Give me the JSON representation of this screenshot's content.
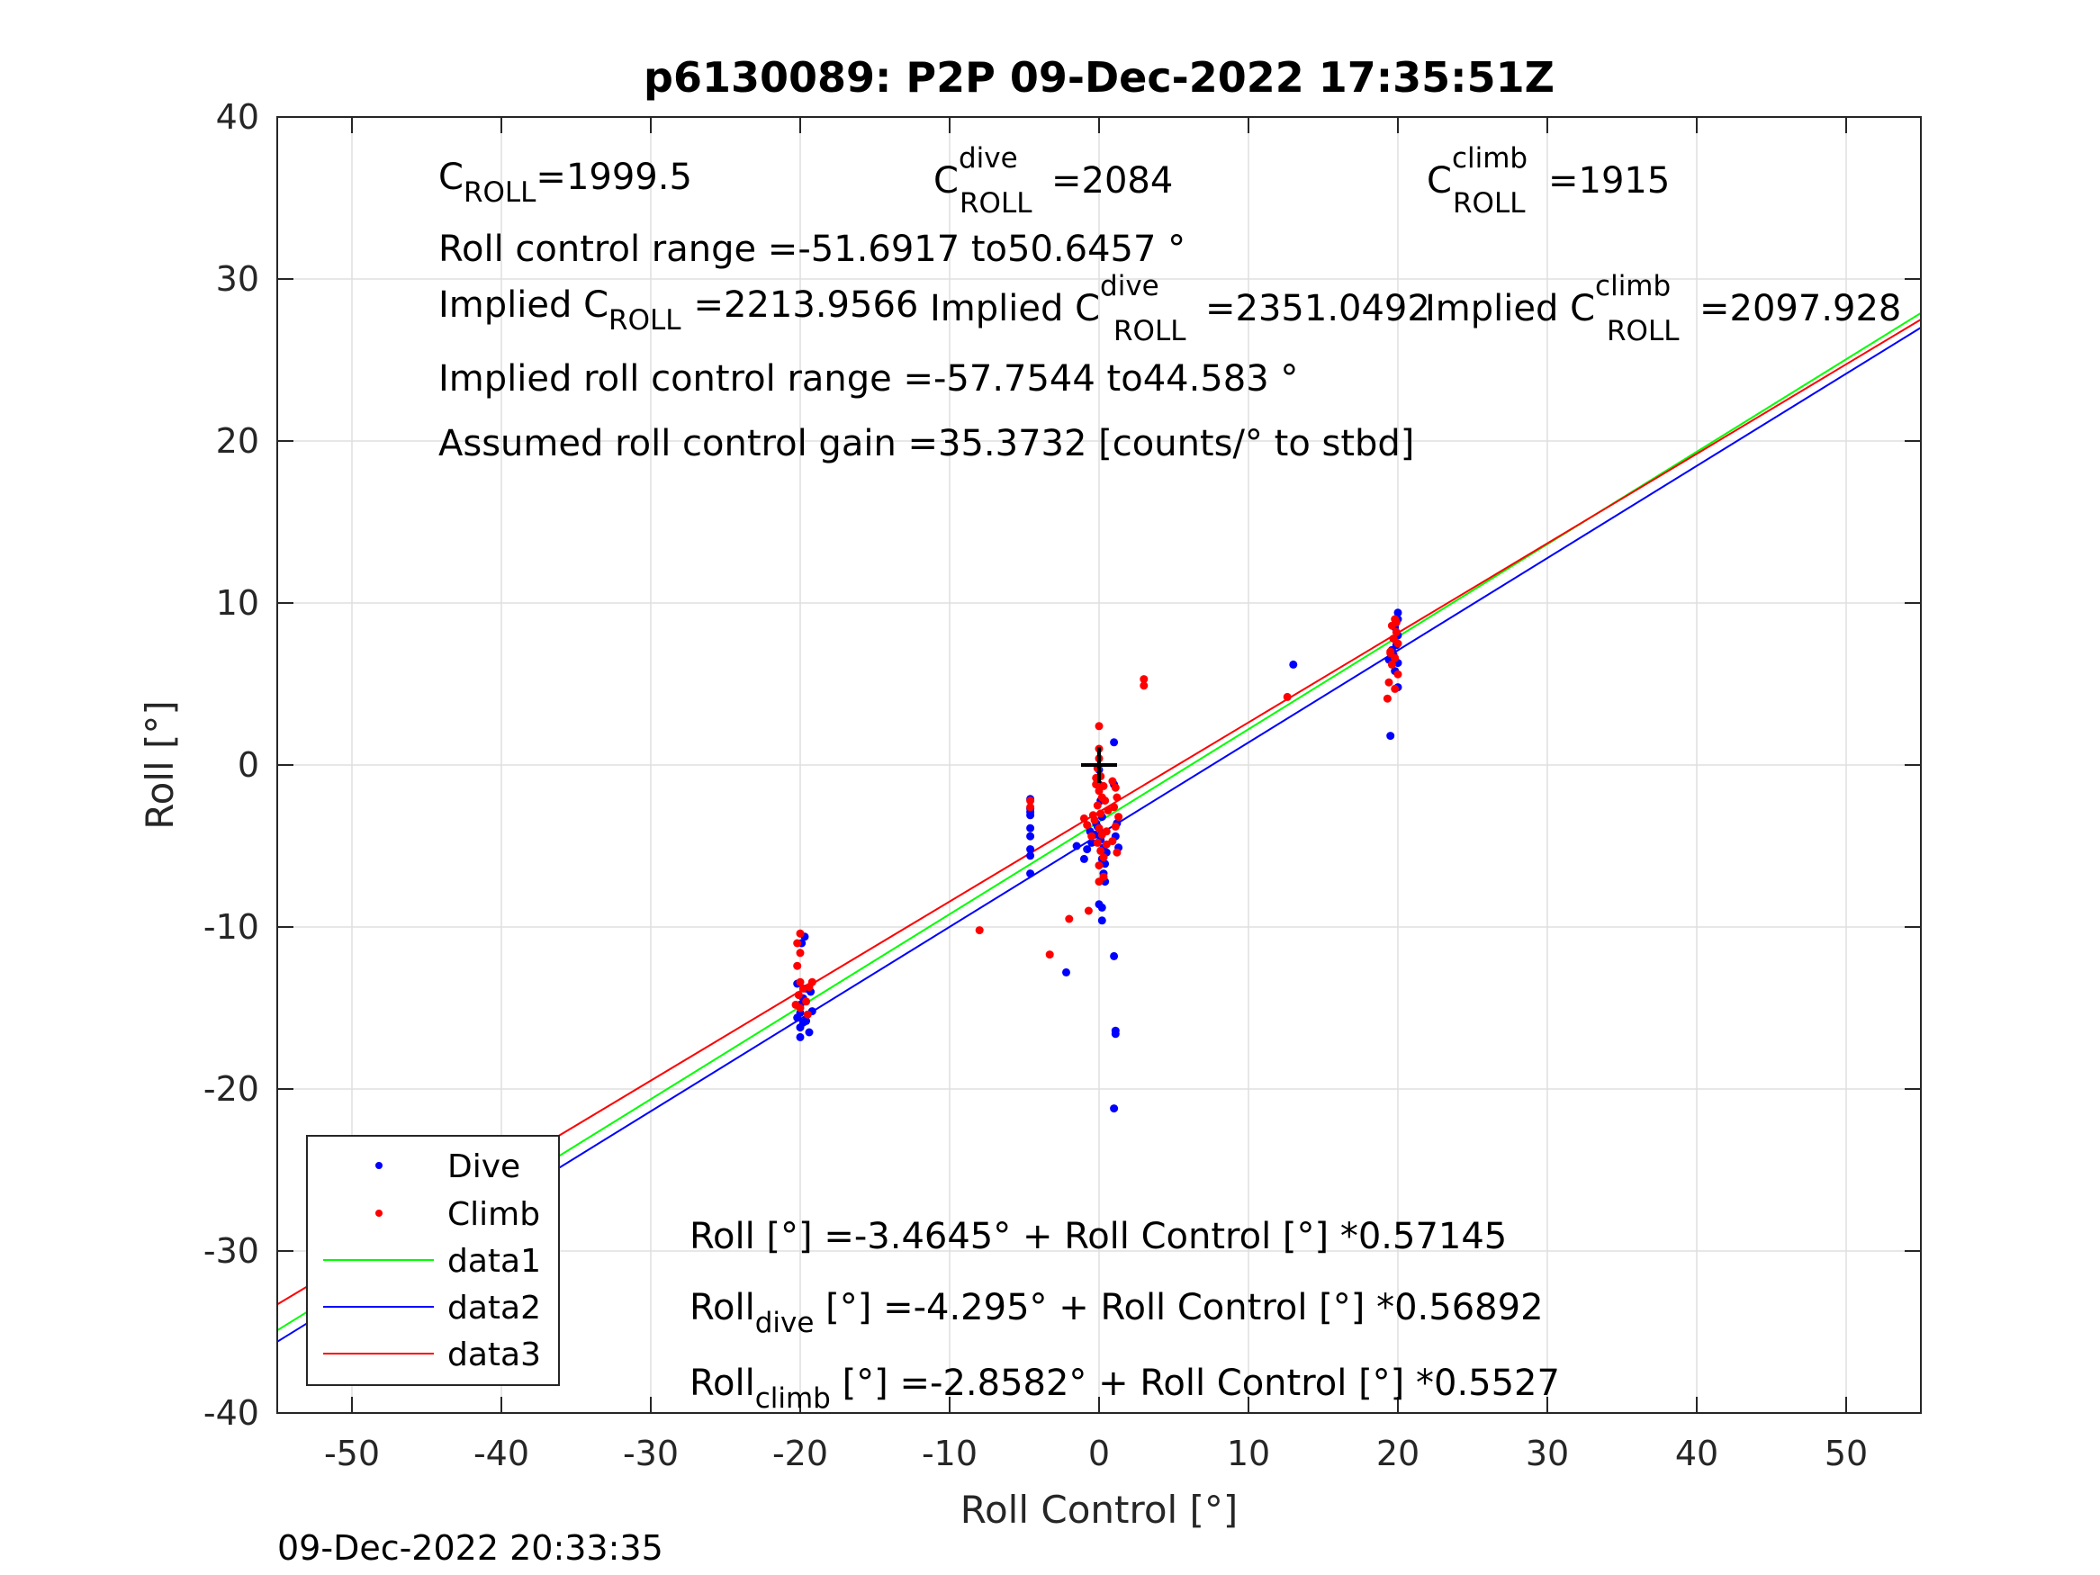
{
  "chart_data": {
    "type": "scatter",
    "title": "p6130089: P2P 09-Dec-2022 17:35:51Z",
    "xlabel": "Roll Control [°]",
    "ylabel": "Roll [°]",
    "xlim": [
      -55,
      55
    ],
    "ylim": [
      -40,
      40
    ],
    "xticks": [
      -50,
      -40,
      -30,
      -20,
      -10,
      0,
      10,
      20,
      30,
      40,
      50
    ],
    "yticks": [
      -40,
      -30,
      -20,
      -10,
      0,
      10,
      20,
      30,
      40
    ],
    "grid": true,
    "legend_position": "bottom-left",
    "colors": {
      "dive": "#0000ff",
      "climb": "#ff0000",
      "data1": "#00ff00",
      "data2": "#0000ff",
      "data3": "#ff0000"
    },
    "series": [
      {
        "name": "Dive",
        "kind": "points",
        "color": "#0000ff",
        "points": [
          [
            -20.0,
            -16.8
          ],
          [
            -20.0,
            -16.2
          ],
          [
            -19.8,
            -15.9
          ],
          [
            -20.2,
            -15.6
          ],
          [
            -20.0,
            -15.3
          ],
          [
            -19.6,
            -15.8
          ],
          [
            -19.4,
            -16.5
          ],
          [
            -19.2,
            -15.2
          ],
          [
            -20.0,
            -14.8
          ],
          [
            -19.8,
            -14.4
          ],
          [
            -19.6,
            -13.8
          ],
          [
            -20.2,
            -13.5
          ],
          [
            -19.9,
            -11.0
          ],
          [
            -19.7,
            -10.6
          ],
          [
            -19.3,
            -14.0
          ],
          [
            -4.6,
            -2.1
          ],
          [
            -4.6,
            -2.7
          ],
          [
            -4.6,
            -3.1
          ],
          [
            -4.6,
            -3.9
          ],
          [
            -4.6,
            -4.4
          ],
          [
            -4.6,
            -5.2
          ],
          [
            -4.6,
            -5.6
          ],
          [
            -4.6,
            -6.7
          ],
          [
            -4.6,
            -2.9
          ],
          [
            -1.0,
            -5.8
          ],
          [
            -0.8,
            -5.2
          ],
          [
            -0.5,
            -4.8
          ],
          [
            -0.3,
            -4.3
          ],
          [
            -0.1,
            -3.8
          ],
          [
            0.0,
            -0.3
          ],
          [
            0.0,
            -1.2
          ],
          [
            0.1,
            -2.2
          ],
          [
            0.2,
            -3.2
          ],
          [
            0.2,
            -4.2
          ],
          [
            0.3,
            -5.1
          ],
          [
            0.2,
            -5.8
          ],
          [
            0.3,
            -6.7
          ],
          [
            0.4,
            -7.2
          ],
          [
            -0.2,
            -3.6
          ],
          [
            0.1,
            -4.6
          ],
          [
            0.5,
            -5.4
          ],
          [
            0.4,
            -6.1
          ],
          [
            -0.6,
            -4.1
          ],
          [
            0.0,
            -8.6
          ],
          [
            0.2,
            -8.8
          ],
          [
            0.2,
            -9.6
          ],
          [
            1.0,
            1.4
          ],
          [
            1.0,
            -1.2
          ],
          [
            1.2,
            -3.6
          ],
          [
            1.1,
            -4.4
          ],
          [
            1.3,
            -5.1
          ],
          [
            1.0,
            -11.8
          ],
          [
            1.1,
            -16.4
          ],
          [
            1.1,
            -16.6
          ],
          [
            1.0,
            -21.2
          ],
          [
            -2.2,
            -12.8
          ],
          [
            -1.5,
            -5.0
          ],
          [
            13.0,
            6.2
          ],
          [
            20.0,
            9.4
          ],
          [
            20.0,
            9.0
          ],
          [
            19.8,
            8.5
          ],
          [
            20.0,
            8.0
          ],
          [
            19.9,
            7.4
          ],
          [
            19.7,
            6.8
          ],
          [
            20.0,
            6.3
          ],
          [
            19.8,
            5.8
          ],
          [
            20.0,
            4.8
          ],
          [
            19.5,
            1.8
          ],
          [
            19.6,
            7.1
          ],
          [
            19.4,
            6.5
          ]
        ]
      },
      {
        "name": "Climb",
        "kind": "points",
        "color": "#ff0000",
        "points": [
          [
            -20.0,
            -10.4
          ],
          [
            -20.2,
            -11.0
          ],
          [
            -20.0,
            -11.6
          ],
          [
            -20.2,
            -12.4
          ],
          [
            -20.0,
            -13.4
          ],
          [
            -19.8,
            -13.8
          ],
          [
            -20.1,
            -14.2
          ],
          [
            -19.6,
            -14.6
          ],
          [
            -20.0,
            -15.0
          ],
          [
            -19.4,
            -13.7
          ],
          [
            -19.2,
            -13.4
          ],
          [
            -20.3,
            -14.8
          ],
          [
            -19.5,
            -15.4
          ],
          [
            -8.0,
            -10.2
          ],
          [
            -3.3,
            -11.7
          ],
          [
            -2.0,
            -9.5
          ],
          [
            -0.7,
            -9.0
          ],
          [
            -4.6,
            -2.2
          ],
          [
            -4.6,
            -2.6
          ],
          [
            0.0,
            2.4
          ],
          [
            0.0,
            1.0
          ],
          [
            0.0,
            0.4
          ],
          [
            -0.1,
            -0.2
          ],
          [
            0.1,
            -0.7
          ],
          [
            -0.2,
            -1.2
          ],
          [
            0.0,
            -1.6
          ],
          [
            0.2,
            -2.0
          ],
          [
            -0.1,
            -2.5
          ],
          [
            0.1,
            -3.0
          ],
          [
            -0.3,
            -3.4
          ],
          [
            0.0,
            -3.9
          ],
          [
            0.2,
            -4.3
          ],
          [
            -0.1,
            -4.8
          ],
          [
            0.1,
            -5.3
          ],
          [
            0.3,
            -5.7
          ],
          [
            0.0,
            -6.2
          ],
          [
            -0.4,
            -3.1
          ],
          [
            0.4,
            -2.2
          ],
          [
            -0.2,
            -0.8
          ],
          [
            0.3,
            -1.3
          ],
          [
            -1.0,
            -3.3
          ],
          [
            -0.8,
            -3.7
          ],
          [
            0.5,
            -4.1
          ],
          [
            -0.5,
            -4.4
          ],
          [
            0.6,
            -2.8
          ],
          [
            0.9,
            -1.0
          ],
          [
            1.1,
            -1.4
          ],
          [
            1.2,
            -2.0
          ],
          [
            1.0,
            -2.6
          ],
          [
            1.3,
            -3.2
          ],
          [
            1.1,
            -3.8
          ],
          [
            0.9,
            -4.7
          ],
          [
            1.2,
            -5.4
          ],
          [
            0.0,
            -7.2
          ],
          [
            0.3,
            -6.9
          ],
          [
            0.5,
            -4.9
          ],
          [
            3.0,
            5.3
          ],
          [
            3.0,
            4.9
          ],
          [
            12.6,
            4.2
          ],
          [
            19.8,
            9.0
          ],
          [
            19.6,
            8.6
          ],
          [
            19.9,
            8.2
          ],
          [
            19.7,
            7.8
          ],
          [
            20.0,
            7.5
          ],
          [
            19.5,
            7.0
          ],
          [
            19.8,
            6.6
          ],
          [
            19.6,
            6.2
          ],
          [
            20.0,
            5.6
          ],
          [
            19.4,
            5.1
          ],
          [
            19.8,
            4.7
          ],
          [
            19.3,
            4.1
          ],
          [
            19.9,
            8.8
          ],
          [
            19.5,
            6.9
          ]
        ]
      },
      {
        "name": "data1",
        "kind": "line",
        "color": "#00ff00",
        "points": [
          [
            -55,
            -34.9
          ],
          [
            55,
            27.9
          ]
        ]
      },
      {
        "name": "data2",
        "kind": "line",
        "color": "#0000ff",
        "points": [
          [
            -55,
            -35.6
          ],
          [
            55,
            27.0
          ]
        ]
      },
      {
        "name": "data3",
        "kind": "line",
        "color": "#ff0000",
        "points": [
          [
            -55,
            -33.3
          ],
          [
            55,
            27.5
          ]
        ]
      }
    ],
    "marker": {
      "type": "plus",
      "x": 0,
      "y": 0,
      "color": "#000000"
    }
  },
  "annotations": {
    "c_roll": {
      "base": "C",
      "sub": "ROLL",
      "value": "=1999.5"
    },
    "c_roll_dive": {
      "base": "C",
      "sup": "dive",
      "sub": "ROLL",
      "value": "=2084"
    },
    "c_roll_climb": {
      "base": "C",
      "sup": "climb",
      "sub": "ROLL",
      "value": "=1915"
    },
    "roll_control_range": "Roll control range =-51.6917 to50.6457 °",
    "implied_c_roll": {
      "prefix": "Implied C",
      "sub": "ROLL",
      "value": "=2213.9566"
    },
    "implied_c_roll_dive": {
      "prefix": "Implied C",
      "sup": "dive",
      "sub": "ROLL",
      "value": "=2351.0492"
    },
    "implied_c_roll_climb": {
      "prefix": "Implied C",
      "sup": "climb",
      "sub": "ROLL",
      "value": "=2097.928"
    },
    "implied_range": "Implied roll control range =-57.7544 to44.583 °",
    "assumed_gain": "Assumed roll control gain =35.3732 [counts/° to stbd]",
    "fit_all": "Roll [°] =-3.4645° + Roll Control [°] *0.57145",
    "fit_dive": {
      "base": "Roll",
      "sub": "dive",
      "rest": " [°] =-4.295° + Roll Control [°] *0.56892"
    },
    "fit_climb": {
      "base": "Roll",
      "sub": "climb",
      "rest": " [°] =-2.8582° + Roll Control [°] *0.5527"
    }
  },
  "footer_timestamp": "09-Dec-2022 20:33:35"
}
